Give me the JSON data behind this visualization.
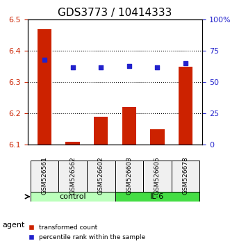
{
  "title": "GDS3773 / 10414333",
  "samples": [
    "GSM526561",
    "GSM526562",
    "GSM526602",
    "GSM526603",
    "GSM526605",
    "GSM526678"
  ],
  "bar_values": [
    6.47,
    6.11,
    6.19,
    6.22,
    6.15,
    6.35
  ],
  "bar_baseline": 6.1,
  "percentile_values": [
    68,
    62,
    62,
    63,
    62,
    65
  ],
  "bar_color": "#cc2200",
  "percentile_color": "#2222cc",
  "ylim_left": [
    6.1,
    6.5
  ],
  "ylim_right": [
    0,
    100
  ],
  "yticks_left": [
    6.1,
    6.2,
    6.3,
    6.4,
    6.5
  ],
  "yticks_right": [
    0,
    25,
    50,
    75,
    100
  ],
  "yticklabels_right": [
    "0",
    "25",
    "50",
    "75",
    "100%"
  ],
  "groups": [
    {
      "label": "control",
      "indices": [
        0,
        1,
        2
      ],
      "color": "#bbffbb"
    },
    {
      "label": "IL-6",
      "indices": [
        3,
        4,
        5
      ],
      "color": "#44dd44"
    }
  ],
  "agent_label": "agent",
  "legend_items": [
    {
      "label": "transformed count",
      "color": "#cc2200"
    },
    {
      "label": "percentile rank within the sample",
      "color": "#2222cc"
    }
  ],
  "bg_color": "#f0f0f0",
  "grid_color": "#000000",
  "title_fontsize": 11,
  "axis_fontsize": 8
}
